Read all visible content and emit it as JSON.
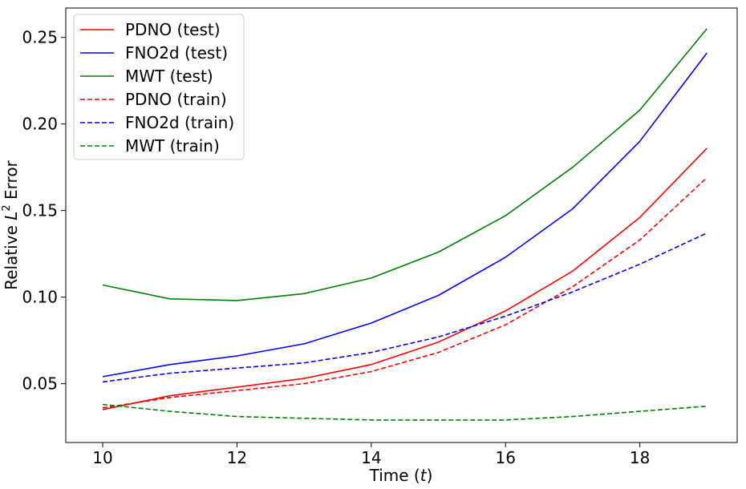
{
  "chart_data": {
    "type": "line",
    "xlabel_prefix": "Time (",
    "xlabel_var": "t",
    "xlabel_suffix": ")",
    "ylabel_prefix": "Relative ",
    "ylabel_var": "L",
    "ylabel_sup": "2",
    "ylabel_suffix": " Error",
    "xlim": [
      9.45,
      19.45
    ],
    "ylim": [
      0.016,
      0.267
    ],
    "xticks": [
      10,
      12,
      14,
      16,
      18
    ],
    "yticks": [
      0.05,
      0.1,
      0.15,
      0.2,
      0.25
    ],
    "ytick_labels": [
      "0.05",
      "0.10",
      "0.15",
      "0.20",
      "0.25"
    ],
    "grid": false,
    "legend_position": "upper-left",
    "x": [
      10,
      11,
      12,
      13,
      14,
      15,
      16,
      17,
      18,
      19
    ],
    "series": [
      {
        "name": "PDNO (test)",
        "color": "#ff0000",
        "dash": "solid",
        "values": [
          0.035,
          0.043,
          0.048,
          0.053,
          0.061,
          0.074,
          0.092,
          0.115,
          0.146,
          0.186
        ]
      },
      {
        "name": "FNO2d (test)",
        "color": "#0000ff",
        "dash": "solid",
        "values": [
          0.054,
          0.061,
          0.066,
          0.073,
          0.085,
          0.101,
          0.123,
          0.151,
          0.19,
          0.241
        ]
      },
      {
        "name": "MWT (test)",
        "color": "#008000",
        "dash": "solid",
        "values": [
          0.107,
          0.099,
          0.098,
          0.102,
          0.111,
          0.126,
          0.147,
          0.175,
          0.208,
          0.255
        ]
      },
      {
        "name": "PDNO (train)",
        "color": "#ff0000",
        "dash": "dashed",
        "values": [
          0.036,
          0.042,
          0.046,
          0.05,
          0.057,
          0.068,
          0.084,
          0.106,
          0.133,
          0.169
        ]
      },
      {
        "name": "FNO2d (train)",
        "color": "#0000ff",
        "dash": "dashed",
        "values": [
          0.051,
          0.056,
          0.059,
          0.062,
          0.068,
          0.077,
          0.089,
          0.103,
          0.119,
          0.137
        ]
      },
      {
        "name": "MWT (train)",
        "color": "#008000",
        "dash": "dashed",
        "values": [
          0.038,
          0.034,
          0.031,
          0.03,
          0.029,
          0.029,
          0.029,
          0.031,
          0.034,
          0.037
        ]
      }
    ]
  }
}
